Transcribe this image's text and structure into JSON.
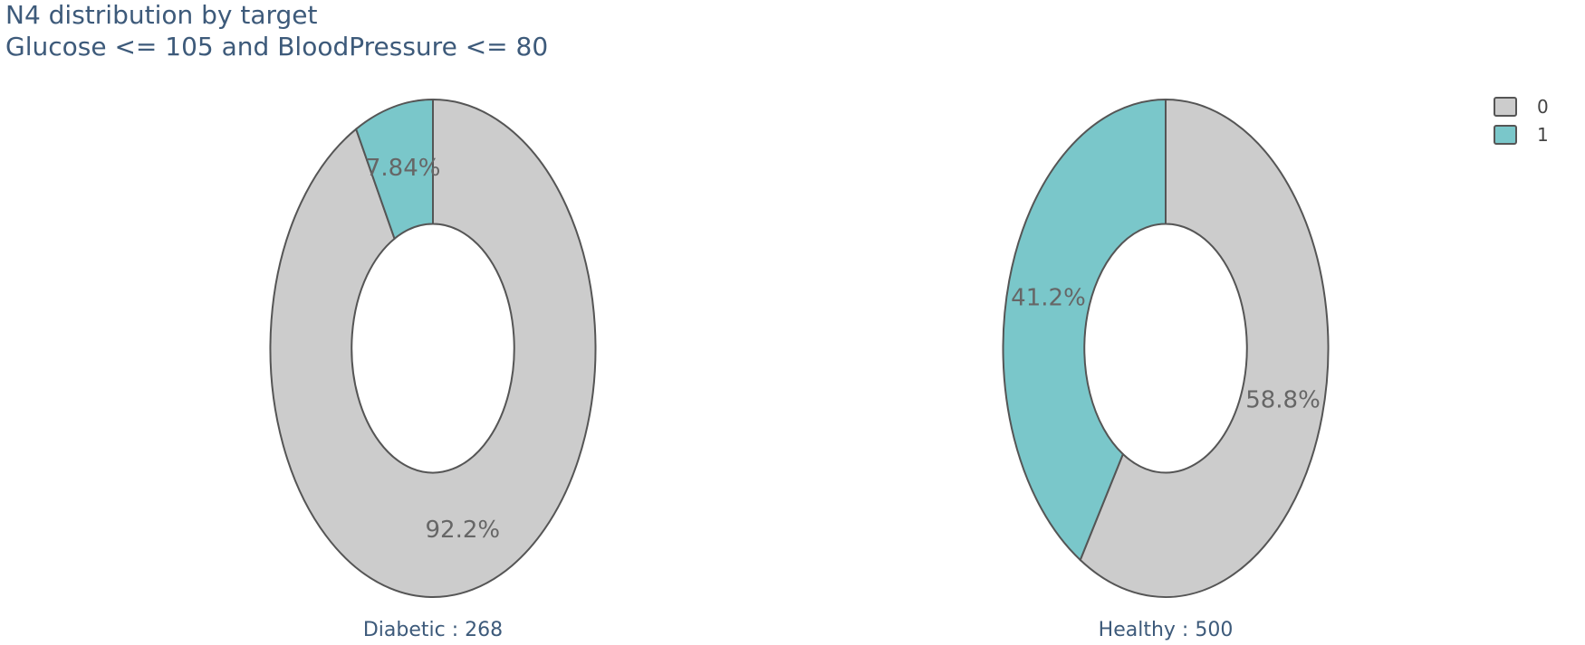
{
  "chart_data": {
    "type": "pie",
    "title": "N4 distribution by target",
    "subtitle": "Glucose <= 105 and BloodPressure <= 80",
    "hole": 0.5,
    "legend": {
      "position": "top-right",
      "entries": [
        {
          "label": "0",
          "color": "#cccccc"
        },
        {
          "label": "1",
          "color": "#7ac7ca"
        }
      ]
    },
    "charts": [
      {
        "name": "Diabetic : 268",
        "slices": [
          {
            "label": "0",
            "value": 92.2,
            "text": "92.2%",
            "color": "#cccccc"
          },
          {
            "label": "1",
            "value": 7.84,
            "text": "7.84%",
            "color": "#7ac7ca"
          }
        ]
      },
      {
        "name": "Healthy : 500",
        "slices": [
          {
            "label": "0",
            "value": 58.8,
            "text": "58.8%",
            "color": "#cccccc"
          },
          {
            "label": "1",
            "value": 41.2,
            "text": "41.2%",
            "color": "#7ac7ca"
          }
        ]
      }
    ]
  }
}
